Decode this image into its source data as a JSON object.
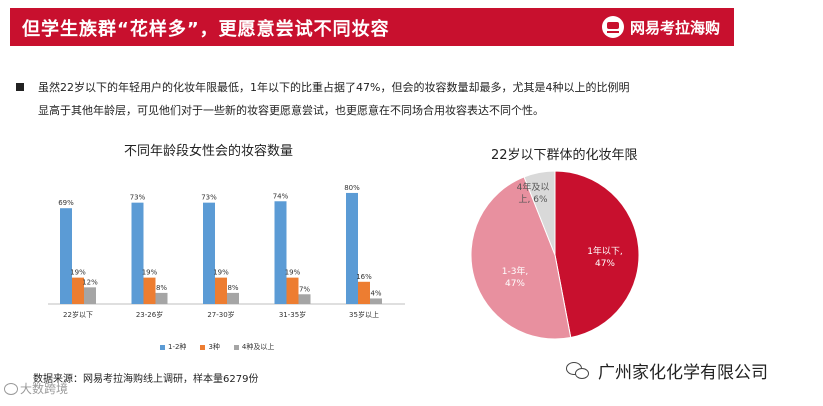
{
  "header": {
    "title": "但学生族群“花样多”，更愿意尝试不同妆容",
    "brand": "网易考拉海购",
    "brand_icon": "netease-kaola-logo-icon",
    "color": "#c8102e"
  },
  "bullet": {
    "line1": "虽然22岁以下的年轻用户的化妆年限最低，1年以下的比重占据了47%，但会的妆容数量却最多，尤其是4种以上的比例明",
    "line2": "显高于其他年龄层，可见他们对于一些新的妆容更愿意尝试，也更愿意在不同场合用妆容表达不同个性。"
  },
  "chart_data": [
    {
      "type": "bar",
      "title": "不同年龄段女性会的妆容数量",
      "categories": [
        "22岁以下",
        "23-26岁",
        "27-30岁",
        "31-35岁",
        "35岁以上"
      ],
      "series": [
        {
          "name": "1-2种",
          "values": [
            69,
            73,
            73,
            74,
            80
          ],
          "labels": [
            "69%",
            "73%",
            "73%",
            "74%",
            "80%"
          ],
          "color": "#5b9bd5"
        },
        {
          "name": "3种",
          "values": [
            19,
            19,
            19,
            19,
            16
          ],
          "labels": [
            "19%",
            "19%",
            "19%",
            "19%",
            "16%"
          ],
          "color": "#ed7d31"
        },
        {
          "name": "4种及以上",
          "values": [
            12,
            8,
            8,
            7,
            4
          ],
          "labels": [
            "12%",
            "8%",
            "8%",
            "7%",
            "4%"
          ],
          "color": "#a5a5a5"
        }
      ],
      "ylim": [
        0,
        85
      ],
      "legend": "bottom",
      "grid": false
    },
    {
      "type": "pie",
      "title": "22岁以下群体的化妆年限",
      "slices": [
        {
          "label_line1": "1年以下,",
          "label_line2": "47%",
          "value": 47,
          "color": "#c8102e"
        },
        {
          "label_line1": "1-3年,",
          "label_line2": "47%",
          "value": 47,
          "color": "#e8909f"
        },
        {
          "label_line1": "4年及以",
          "label_line2": "上, 6%",
          "value": 6,
          "color": "#d9d9d9"
        }
      ]
    }
  ],
  "source": "数据来源：网易考拉海购线上调研，样本量6279份",
  "watermark_left": "大数跨境",
  "watermark_left_icon": "watermark-logo-icon",
  "watermark_right": "广州家化化学有限公司",
  "watermark_right_icon": "wechat-icon"
}
